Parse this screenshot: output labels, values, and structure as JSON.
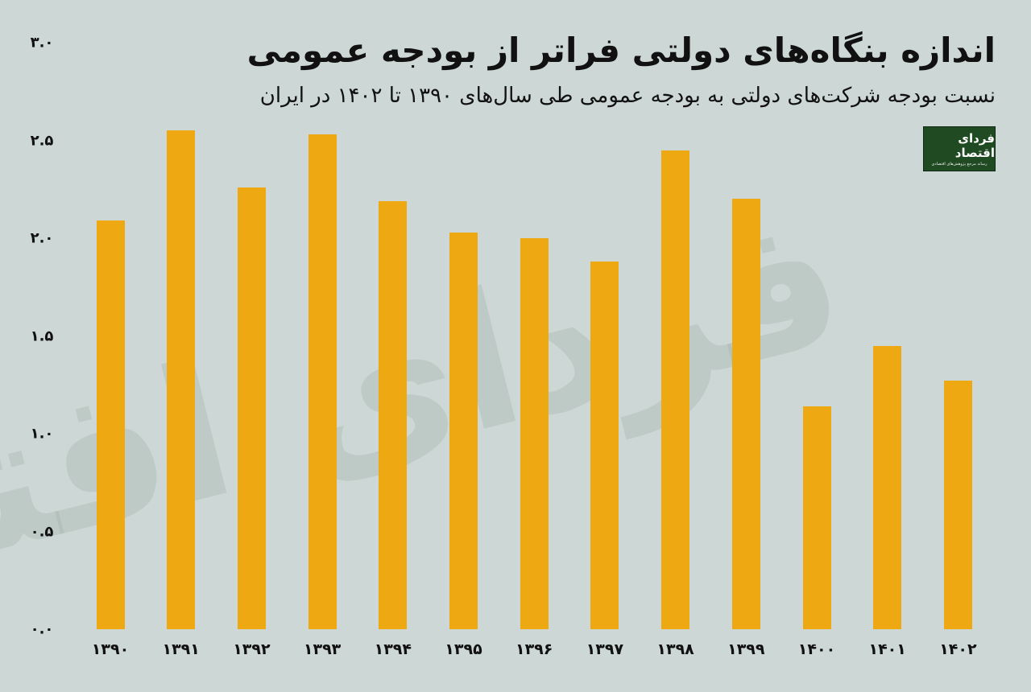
{
  "header": {
    "title": "اندازه بنگاه‌های دولتی فراتر از بودجه عمومی",
    "subtitle": "نسبت بودجه شرکت‌های دولتی به بودجه عمومی طی سال‌های ۱۳۹۰ تا ۱۴۰۲ در ایران"
  },
  "logo": {
    "name": "فردای اقتصاد",
    "tagline": "رسانه مرجع پژوهش‌های اقتصادی",
    "bg_color": "#1f4a22"
  },
  "watermark": "فردای اقتصاد",
  "colors": {
    "background": "#cdd7d5",
    "bar": "#eea811",
    "text": "#111111"
  },
  "y_ticks": [
    "۳.۰",
    "۲.۵",
    "۲.۰",
    "۱.۵",
    "۱.۰",
    "۰.۵",
    "۰.۰"
  ],
  "x_ticks": [
    "۱۳۹۰",
    "۱۳۹۱",
    "۱۳۹۲",
    "۱۳۹۳",
    "۱۳۹۴",
    "۱۳۹۵",
    "۱۳۹۶",
    "۱۳۹۷",
    "۱۳۹۸",
    "۱۳۹۹",
    "۱۴۰۰",
    "۱۴۰۱",
    "۱۴۰۲"
  ],
  "chart_data": {
    "type": "bar",
    "title": "اندازه بنگاه‌های دولتی فراتر از بودجه عمومی",
    "subtitle": "نسبت بودجه شرکت‌های دولتی به بودجه عمومی طی سال‌های ۱۳۹۰ تا ۱۴۰۲ در ایران",
    "categories": [
      "1390",
      "1391",
      "1392",
      "1393",
      "1394",
      "1395",
      "1396",
      "1397",
      "1398",
      "1399",
      "1400",
      "1401",
      "1402"
    ],
    "values": [
      2.09,
      2.55,
      2.26,
      2.53,
      2.19,
      2.03,
      2.0,
      1.88,
      2.45,
      2.2,
      1.14,
      1.45,
      1.27
    ],
    "xlabel": "",
    "ylabel": "",
    "ylim": [
      0,
      3.0
    ],
    "yticks": [
      0.0,
      0.5,
      1.0,
      1.5,
      2.0,
      2.5,
      3.0
    ],
    "grid": false,
    "legend": null,
    "bar_color": "#eea811"
  }
}
